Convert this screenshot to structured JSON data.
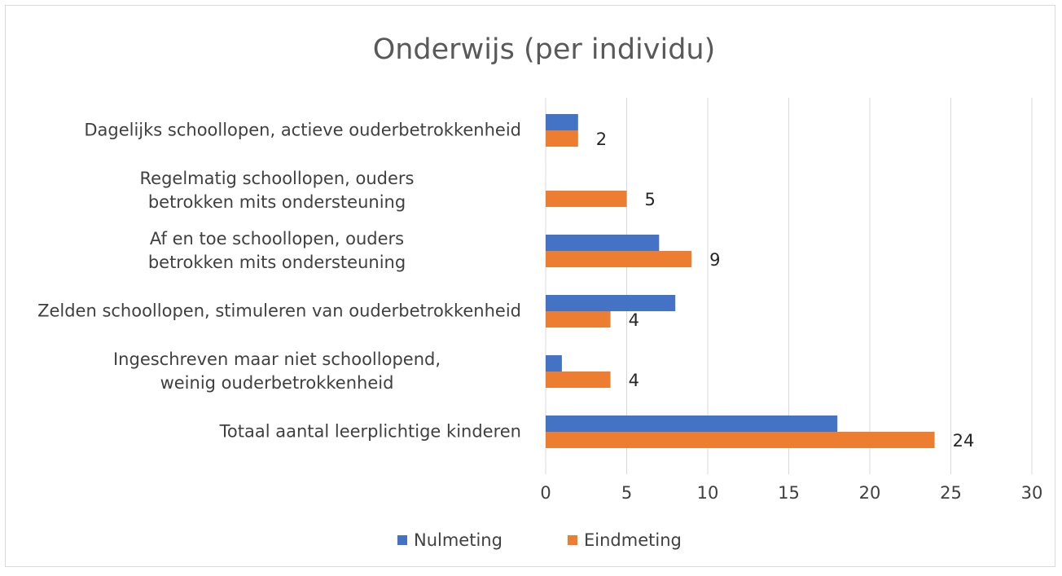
{
  "chart_data": {
    "type": "hbar",
    "title": "Onderwijs (per individu)",
    "categories": [
      "Dagelijks schoollopen, actieve ouderbetrokkenheid",
      "Regelmatig schoollopen, ouders betrokken mits ondersteuning",
      "Af en toe schoollopen, ouders betrokken mits ondersteuning",
      "Zelden schoollopen, stimuleren van ouderbetrokkenheid",
      "Ingeschreven maar niet schoollopend, weinig ouderbetrokkenheid",
      "Totaal aantal leerplichtige kinderen"
    ],
    "series": [
      {
        "name": "Nulmeting",
        "color": "#4472c4",
        "values": [
          2,
          0,
          7,
          8,
          1,
          18
        ]
      },
      {
        "name": "Eindmeting",
        "color": "#ed7d31",
        "values": [
          2,
          5,
          9,
          4,
          4,
          24
        ],
        "data_labels": true
      }
    ],
    "xlim": [
      0,
      30
    ],
    "xticks": [
      0,
      5,
      10,
      15,
      20,
      25,
      30
    ],
    "grid": true,
    "legend": "bottom"
  }
}
